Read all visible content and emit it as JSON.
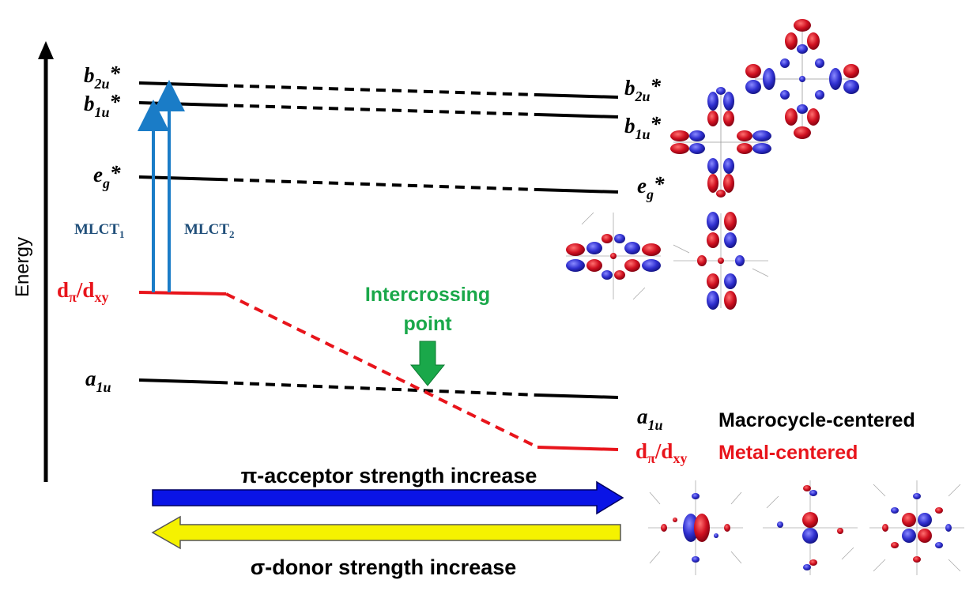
{
  "axis": {
    "label": "Energy"
  },
  "levels_left": {
    "b2u": {
      "main": "b",
      "sub": "2u",
      "star": "*"
    },
    "b1u": {
      "main": "b",
      "sub": "1u",
      "star": "*"
    },
    "eg": {
      "main": "e",
      "sub": "g",
      "star": "*"
    },
    "dpi": {
      "d": "d",
      "pi": "π",
      "slash": "/d",
      "xy": "xy"
    },
    "a1u": {
      "main": "a",
      "sub": "1u"
    }
  },
  "levels_right": {
    "b2u": {
      "main": "b",
      "sub": "2u",
      "star": "*"
    },
    "b1u": {
      "main": "b",
      "sub": "1u",
      "star": "*"
    },
    "eg": {
      "main": "e",
      "sub": "g",
      "star": "*"
    },
    "a1u": {
      "main": "a",
      "sub": "1u"
    },
    "dpi": {
      "d": "d",
      "pi": "π",
      "slash": "/d",
      "xy": "xy"
    }
  },
  "transitions": {
    "mlct1": {
      "main": "MLCT",
      "sub": "1"
    },
    "mlct2": {
      "main": "MLCT",
      "sub": "2"
    }
  },
  "intercrossing": {
    "line1": "Intercrossing",
    "line2": "point"
  },
  "legend": {
    "macrocycle": "Macrocycle-centered",
    "metal": "Metal-centered"
  },
  "arrows": {
    "pi_acceptor": "π-acceptor strength increase",
    "sigma_donor": "σ-donor strength increase"
  },
  "colors": {
    "black": "#000000",
    "red": "#e8141b",
    "green": "#1aa84a",
    "blue_arrow": "#0a14e6",
    "yellow_arrow": "#f5f200",
    "mlct_blue": "#1a7cc7",
    "mlct_text": "#1f4e79",
    "lobe_red": "#c8102e",
    "lobe_blue": "#3b3bd6"
  }
}
